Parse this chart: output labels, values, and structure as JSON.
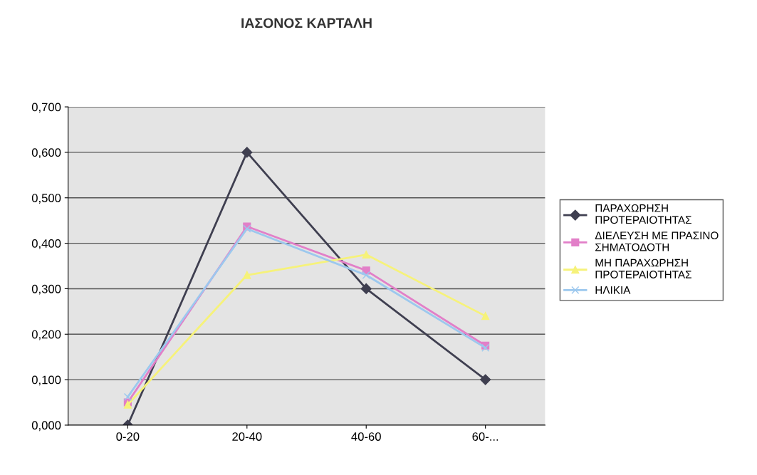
{
  "chart_data": {
    "type": "line",
    "title": "ΙΑΣΟΝΟΣ ΚΑΡΤΑΛΗ",
    "categories": [
      "0-20",
      "20-40",
      "40-60",
      "60-..."
    ],
    "series": [
      {
        "name": "ΠΑΡΑΧΩΡΗΣΗ ΠΡΟΤΕΡΑΙΟΤΗΤΑΣ",
        "color": "#3f3f50",
        "marker": "diamond",
        "values": [
          0.0,
          0.6,
          0.3,
          0.1
        ]
      },
      {
        "name": "ΔΙΕΛΕΥΣΗ ΜΕ ΠΡΑΣΙΝΟ ΣΗΜΑΤΟΔΟΤΗ",
        "color": "#e27fc8",
        "marker": "square",
        "values": [
          0.05,
          0.437,
          0.34,
          0.175
        ]
      },
      {
        "name": "ΜΗ ΠΑΡΑΧΩΡΗΣΗ ΠΡΟΤΕΡΑΙΟΤΗΤΑΣ",
        "color": "#f6f27a",
        "marker": "triangle",
        "values": [
          0.045,
          0.33,
          0.375,
          0.24
        ]
      },
      {
        "name": "ΗΛΙΚΙΑ",
        "color": "#9cc8ee",
        "marker": "cross",
        "values": [
          0.062,
          0.432,
          0.33,
          0.17
        ]
      }
    ],
    "ylim": [
      0,
      0.7
    ],
    "yticks": [
      {
        "value": 0,
        "label": "0,000"
      },
      {
        "value": 0.1,
        "label": "0,100"
      },
      {
        "value": 0.2,
        "label": "0,200"
      },
      {
        "value": 0.3,
        "label": "0,300"
      },
      {
        "value": 0.4,
        "label": "0,400"
      },
      {
        "value": 0.5,
        "label": "0,500"
      },
      {
        "value": 0.6,
        "label": "0,600"
      },
      {
        "value": 0.7,
        "label": "0,700"
      }
    ],
    "grid": "y",
    "legend": "right"
  }
}
